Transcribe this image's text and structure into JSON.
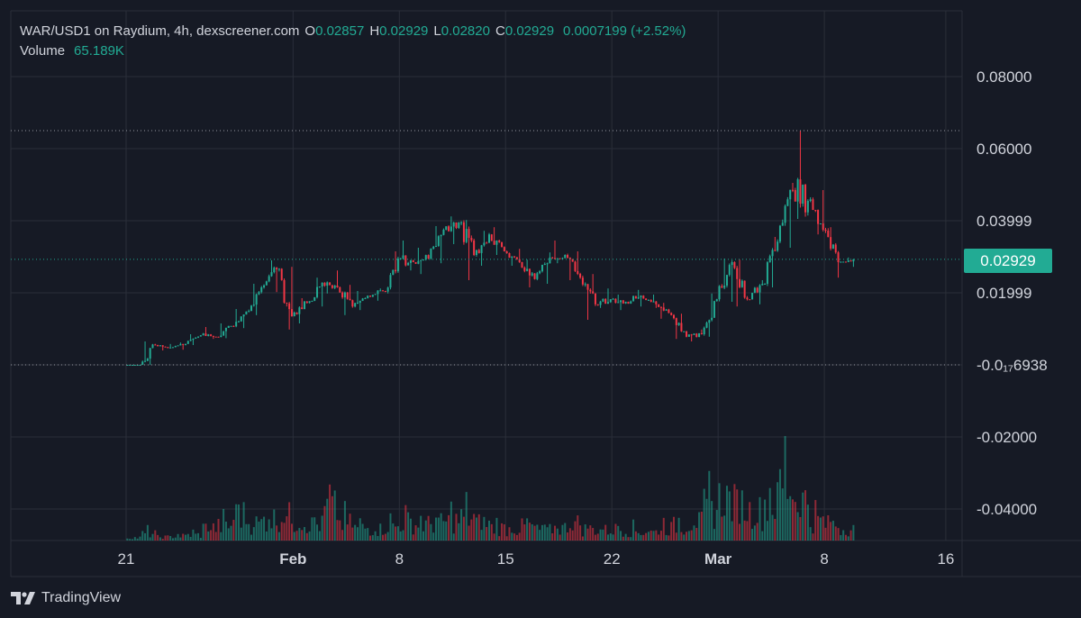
{
  "legend": {
    "symbol": "WAR/USD1 on Raydium, 4h, dexscreener.com",
    "o_label": "O",
    "o_value": "0.02857",
    "h_label": "H",
    "h_value": "0.02929",
    "l_label": "L",
    "l_value": "0.02820",
    "c_label": "C",
    "c_value": "0.02929",
    "change": "0.0007199 (+2.52%)",
    "volume_label": "Volume",
    "volume_value": "65.189K"
  },
  "price_tag": "0.02929",
  "branding": "TradingView",
  "colors": {
    "background": "#161a25",
    "grid": "#2a2e39",
    "up": "#22ab94",
    "down": "#f23645",
    "text": "#d1d4dc",
    "price_line": "#22ab94"
  },
  "chart_data": {
    "type": "candlestick",
    "interval": "4h",
    "x_tick_labels": [
      "21",
      "Feb",
      "8",
      "15",
      "22",
      "Mar",
      "8",
      "16"
    ],
    "y_tick_labels": [
      "0.08000",
      "0.06000",
      "0.03999",
      "0.01999",
      "-0.0₁₇6938",
      "-0.02000",
      "-0.04000"
    ],
    "y_tick_values": [
      0.08,
      0.06,
      0.03999,
      0.01999,
      0.0,
      -0.02,
      -0.04
    ],
    "ylim": [
      -0.048,
      0.098
    ],
    "current_price": 0.02929,
    "high_marker": 0.065,
    "low_marker": 0.0,
    "grid": true,
    "series": [
      {
        "name": "Price",
        "daily_ohlc": [
          {
            "d": "Jan 21",
            "o": 0.0,
            "h": 0.0,
            "l": 0.0,
            "c": 0.0
          },
          {
            "d": "Jan 22",
            "o": 0.0,
            "h": 0.0065,
            "l": 0.0,
            "c": 0.0055
          },
          {
            "d": "Jan 23",
            "o": 0.0055,
            "h": 0.0058,
            "l": 0.004,
            "c": 0.0048
          },
          {
            "d": "Jan 24",
            "o": 0.0048,
            "h": 0.0062,
            "l": 0.0042,
            "c": 0.0058
          },
          {
            "d": "Jan 25",
            "o": 0.0058,
            "h": 0.0085,
            "l": 0.0055,
            "c": 0.0082
          },
          {
            "d": "Jan 26",
            "o": 0.0082,
            "h": 0.0105,
            "l": 0.0072,
            "c": 0.0078
          },
          {
            "d": "Jan 27",
            "o": 0.0078,
            "h": 0.0115,
            "l": 0.0074,
            "c": 0.0108
          },
          {
            "d": "Jan 28",
            "o": 0.0108,
            "h": 0.0155,
            "l": 0.0102,
            "c": 0.0148
          },
          {
            "d": "Jan 29",
            "o": 0.0148,
            "h": 0.0225,
            "l": 0.0138,
            "c": 0.0215
          },
          {
            "d": "Jan 30",
            "o": 0.0215,
            "h": 0.029,
            "l": 0.0202,
            "c": 0.0265
          },
          {
            "d": "Jan 31",
            "o": 0.0265,
            "h": 0.0272,
            "l": 0.0098,
            "c": 0.0135
          },
          {
            "d": "Feb 1",
            "o": 0.0135,
            "h": 0.0185,
            "l": 0.0115,
            "c": 0.0172
          },
          {
            "d": "Feb 2",
            "o": 0.0172,
            "h": 0.0242,
            "l": 0.0162,
            "c": 0.0228
          },
          {
            "d": "Feb 3",
            "o": 0.0228,
            "h": 0.0262,
            "l": 0.0198,
            "c": 0.0215
          },
          {
            "d": "Feb 4",
            "o": 0.0215,
            "h": 0.0222,
            "l": 0.0138,
            "c": 0.0162
          },
          {
            "d": "Feb 5",
            "o": 0.0162,
            "h": 0.0205,
            "l": 0.0152,
            "c": 0.0192
          },
          {
            "d": "Feb 6",
            "o": 0.0192,
            "h": 0.0212,
            "l": 0.0178,
            "c": 0.0205
          },
          {
            "d": "Feb 7",
            "o": 0.0205,
            "h": 0.0315,
            "l": 0.0198,
            "c": 0.0295
          },
          {
            "d": "Feb 8",
            "o": 0.0295,
            "h": 0.0345,
            "l": 0.0262,
            "c": 0.0285
          },
          {
            "d": "Feb 9",
            "o": 0.0285,
            "h": 0.0325,
            "l": 0.0252,
            "c": 0.0295
          },
          {
            "d": "Feb 10",
            "o": 0.0295,
            "h": 0.0385,
            "l": 0.0282,
            "c": 0.0375
          },
          {
            "d": "Feb 11",
            "o": 0.0375,
            "h": 0.0412,
            "l": 0.0335,
            "c": 0.0395
          },
          {
            "d": "Feb 12",
            "o": 0.0395,
            "h": 0.0402,
            "l": 0.0235,
            "c": 0.0305
          },
          {
            "d": "Feb 13",
            "o": 0.0305,
            "h": 0.0372,
            "l": 0.0275,
            "c": 0.0362
          },
          {
            "d": "Feb 14",
            "o": 0.0362,
            "h": 0.0382,
            "l": 0.0305,
            "c": 0.0315
          },
          {
            "d": "Feb 15",
            "o": 0.0315,
            "h": 0.0322,
            "l": 0.0275,
            "c": 0.0285
          },
          {
            "d": "Feb 16",
            "o": 0.0285,
            "h": 0.0292,
            "l": 0.0215,
            "c": 0.0238
          },
          {
            "d": "Feb 17",
            "o": 0.0238,
            "h": 0.0312,
            "l": 0.0225,
            "c": 0.0298
          },
          {
            "d": "Feb 18",
            "o": 0.0298,
            "h": 0.0345,
            "l": 0.0282,
            "c": 0.0305
          },
          {
            "d": "Feb 19",
            "o": 0.0305,
            "h": 0.0315,
            "l": 0.0235,
            "c": 0.0242
          },
          {
            "d": "Feb 20",
            "o": 0.0242,
            "h": 0.0252,
            "l": 0.0125,
            "c": 0.0168
          },
          {
            "d": "Feb 21",
            "o": 0.0168,
            "h": 0.0212,
            "l": 0.0158,
            "c": 0.0182
          },
          {
            "d": "Feb 22",
            "o": 0.0182,
            "h": 0.0195,
            "l": 0.0152,
            "c": 0.0175
          },
          {
            "d": "Feb 23",
            "o": 0.0175,
            "h": 0.0208,
            "l": 0.0162,
            "c": 0.0192
          },
          {
            "d": "Feb 24",
            "o": 0.0192,
            "h": 0.0195,
            "l": 0.0158,
            "c": 0.0168
          },
          {
            "d": "Feb 25",
            "o": 0.0168,
            "h": 0.0172,
            "l": 0.0128,
            "c": 0.0138
          },
          {
            "d": "Feb 26",
            "o": 0.0138,
            "h": 0.0142,
            "l": 0.0072,
            "c": 0.0078
          },
          {
            "d": "Feb 27",
            "o": 0.0078,
            "h": 0.0098,
            "l": 0.0065,
            "c": 0.0085
          },
          {
            "d": "Feb 28",
            "o": 0.0085,
            "h": 0.0198,
            "l": 0.0078,
            "c": 0.0182
          },
          {
            "d": "Mar 1",
            "o": 0.0182,
            "h": 0.0295,
            "l": 0.0175,
            "c": 0.0285
          },
          {
            "d": "Mar 2",
            "o": 0.0285,
            "h": 0.0292,
            "l": 0.0162,
            "c": 0.0182
          },
          {
            "d": "Mar 3",
            "o": 0.0182,
            "h": 0.0235,
            "l": 0.0168,
            "c": 0.0225
          },
          {
            "d": "Mar 4",
            "o": 0.0225,
            "h": 0.0355,
            "l": 0.0215,
            "c": 0.0342
          },
          {
            "d": "Mar 5",
            "o": 0.0342,
            "h": 0.0505,
            "l": 0.0325,
            "c": 0.0485
          },
          {
            "d": "Mar 6",
            "o": 0.0485,
            "h": 0.065,
            "l": 0.0405,
            "c": 0.0455
          },
          {
            "d": "Mar 7",
            "o": 0.0455,
            "h": 0.0485,
            "l": 0.0362,
            "c": 0.0375
          },
          {
            "d": "Mar 8",
            "o": 0.0375,
            "h": 0.0382,
            "l": 0.0242,
            "c": 0.0285
          },
          {
            "d": "Mar 9",
            "o": 0.0285,
            "h": 0.0298,
            "l": 0.0272,
            "c": 0.02929
          }
        ]
      }
    ],
    "volume": {
      "label": "Volume",
      "last_value_text": "65.189K",
      "daily_max_relative": [
        0.05,
        0.12,
        0.06,
        0.08,
        0.1,
        0.22,
        0.25,
        0.45,
        0.3,
        0.38,
        0.42,
        0.32,
        0.28,
        0.55,
        0.3,
        0.22,
        0.2,
        0.25,
        0.32,
        0.28,
        0.3,
        0.35,
        0.4,
        0.3,
        0.22,
        0.2,
        0.24,
        0.18,
        0.22,
        0.3,
        0.2,
        0.18,
        0.2,
        0.16,
        0.15,
        0.22,
        0.26,
        0.32,
        0.56,
        0.72,
        0.62,
        0.5,
        0.66,
        1.0,
        0.7,
        0.35,
        0.28,
        0.2
      ]
    }
  }
}
